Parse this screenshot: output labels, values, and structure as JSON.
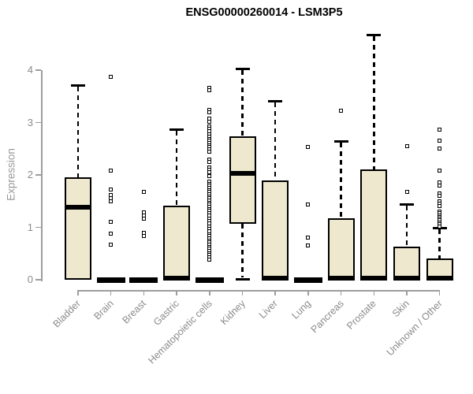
{
  "chart_data": {
    "type": "boxplot",
    "title": "ENSG00000260014 - LSM3P5",
    "ylabel": "Expression",
    "xlabel": "",
    "axis_range": [
      0,
      4
    ],
    "yticks": [
      0,
      1,
      2,
      3,
      4
    ],
    "grid": false,
    "legend": false,
    "outlier_marker": "open-square",
    "colors": {
      "box_fill": "#EDE8CE",
      "box_border": "#000000",
      "median": "#000000",
      "whisker": "#000000",
      "outlier": "#000000",
      "axis": "#9d9d9d",
      "tick_label": "#8b8b8b",
      "title": "#000000",
      "background": "#ffffff"
    },
    "categories": [
      "Bladder",
      "Brain",
      "Breast",
      "Gastric",
      "Hematopoietic cells",
      "Kidney",
      "Liver",
      "Lung",
      "Pancreas",
      "Prostate",
      "Skin",
      "Unknown / Other"
    ],
    "boxes": [
      {
        "category": "Bladder",
        "whisker_low": 0,
        "q1": 0,
        "median": 1.38,
        "q3": 1.95,
        "whisker_high": 3.72,
        "outliers": []
      },
      {
        "category": "Brain",
        "whisker_low": 0,
        "q1": 0,
        "median": 0,
        "q3": 0,
        "whisker_high": 0,
        "outliers": [
          3.87,
          2.08,
          1.72,
          1.62,
          1.56,
          1.5,
          1.1,
          0.88,
          0.67
        ]
      },
      {
        "category": "Breast",
        "whisker_low": 0,
        "q1": 0,
        "median": 0,
        "q3": 0,
        "whisker_high": 0,
        "outliers": [
          1.68,
          1.28,
          1.23,
          1.17,
          0.89,
          0.83
        ]
      },
      {
        "category": "Gastric",
        "whisker_low": 0,
        "q1": 0,
        "median": 0,
        "q3": 1.41,
        "whisker_high": 2.87,
        "outliers": []
      },
      {
        "category": "Hematopoietic cells",
        "whisker_low": 0,
        "q1": 0,
        "median": 0,
        "q3": 0,
        "whisker_high": 0,
        "outliers": [
          3.66,
          3.61,
          3.24,
          3.19,
          3.07,
          3.02,
          2.92,
          2.88,
          2.84,
          2.77,
          2.73,
          2.69,
          2.65,
          2.61,
          2.57,
          2.53,
          2.49,
          2.45,
          2.3,
          2.25,
          2.15,
          2.1,
          2.05,
          1.98,
          1.87,
          1.83,
          1.79,
          1.75,
          1.71,
          1.67,
          1.63,
          1.59,
          1.55,
          1.51,
          1.47,
          1.43,
          1.39,
          1.35,
          1.31,
          1.27,
          1.23,
          1.17,
          1.12,
          1.07,
          1.02,
          0.97,
          0.92,
          0.87,
          0.83,
          0.79,
          0.75,
          0.71,
          0.67,
          0.63,
          0.59,
          0.55,
          0.51,
          0.47,
          0.43,
          0.39
        ]
      },
      {
        "category": "Kidney",
        "whisker_low": 0.02,
        "q1": 1.07,
        "median": 2.03,
        "q3": 2.73,
        "whisker_high": 4.03,
        "outliers": []
      },
      {
        "category": "Liver",
        "whisker_low": 0,
        "q1": 0,
        "median": 0,
        "q3": 1.9,
        "whisker_high": 3.42,
        "outliers": []
      },
      {
        "category": "Lung",
        "whisker_low": 0,
        "q1": 0,
        "median": 0,
        "q3": 0,
        "whisker_high": 0,
        "outliers": [
          2.54,
          1.44,
          0.8,
          0.66
        ]
      },
      {
        "category": "Pancreas",
        "whisker_low": 0,
        "q1": 0,
        "median": 0,
        "q3": 1.17,
        "whisker_high": 2.65,
        "outliers": [
          3.22
        ]
      },
      {
        "category": "Prostate",
        "whisker_low": 0,
        "q1": 0,
        "median": 0,
        "q3": 2.1,
        "whisker_high": 4.68,
        "outliers": []
      },
      {
        "category": "Skin",
        "whisker_low": 0,
        "q1": 0,
        "median": 0,
        "q3": 0.63,
        "whisker_high": 1.45,
        "outliers": [
          2.55,
          1.68
        ]
      },
      {
        "category": "Unknown / Other",
        "whisker_low": 0,
        "q1": 0,
        "median": 0,
        "q3": 0.4,
        "whisker_high": 0.99,
        "outliers": [
          2.87,
          2.66,
          2.51,
          2.08,
          1.85,
          1.8,
          1.65,
          1.6,
          1.5,
          1.45,
          1.4,
          1.3,
          1.27,
          1.23,
          1.2,
          1.16,
          1.13,
          1.09,
          1.06,
          1.02
        ]
      }
    ]
  }
}
